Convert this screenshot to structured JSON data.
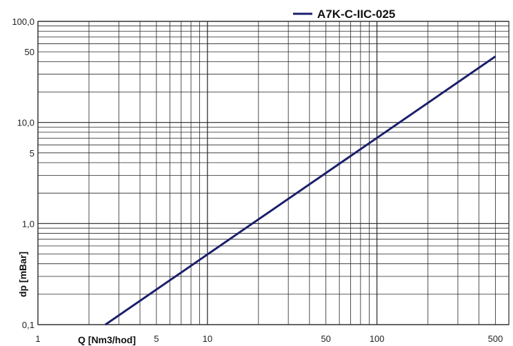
{
  "chart_data": {
    "type": "line",
    "xscale": "log",
    "yscale": "log",
    "xlim": [
      1,
      600
    ],
    "ylim": [
      0.1,
      100
    ],
    "xlabel": "Q [Nm3/hod]",
    "ylabel": "dp [mBar]",
    "x_tick_labels": [
      {
        "value": 1,
        "label": "1"
      },
      {
        "value": 5,
        "label": "5"
      },
      {
        "value": 10,
        "label": "10"
      },
      {
        "value": 50,
        "label": "50"
      },
      {
        "value": 100,
        "label": "100"
      },
      {
        "value": 500,
        "label": "500"
      }
    ],
    "y_tick_labels": [
      {
        "value": 0.1,
        "label": "0,1"
      },
      {
        "value": 1,
        "label": "1,0"
      },
      {
        "value": 5,
        "label": "5"
      },
      {
        "value": 10,
        "label": "10,0"
      },
      {
        "value": 50,
        "label": "50"
      },
      {
        "value": 100,
        "label": "100,0"
      }
    ],
    "grid": true,
    "legend_position": "top-right",
    "series": [
      {
        "name": "A7K-C-IIC-025",
        "color": "#1a1f6b",
        "x": [
          2.5,
          500
        ],
        "y": [
          0.1,
          45
        ]
      }
    ]
  }
}
